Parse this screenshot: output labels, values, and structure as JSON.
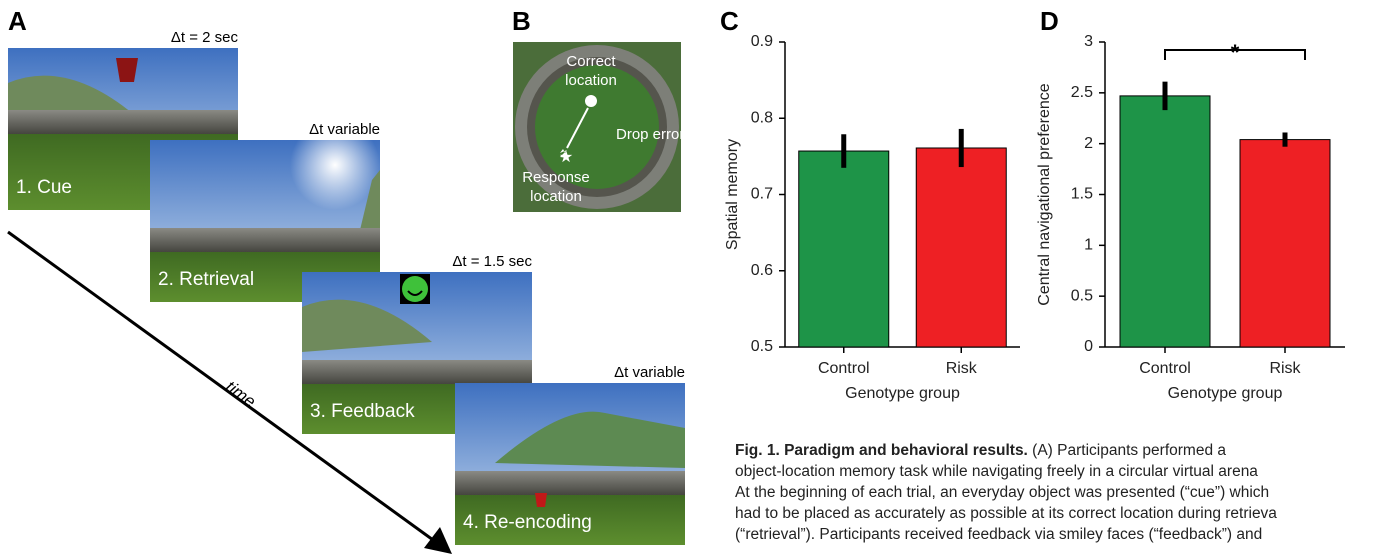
{
  "panels": {
    "a": "A",
    "b": "B",
    "c": "C",
    "d": "D"
  },
  "panel_a": {
    "scenes": [
      {
        "label": "1. Cue",
        "duration": "Δt = 2 sec"
      },
      {
        "label": "2. Retrieval",
        "duration": "Δt variable"
      },
      {
        "label": "3. Feedback",
        "duration": "Δt = 1.5 sec"
      },
      {
        "label": "4. Re-encoding",
        "duration": "Δt variable"
      }
    ],
    "time_label": "time"
  },
  "panel_b": {
    "correct": [
      "Correct",
      "location"
    ],
    "error": "Drop error",
    "response": [
      "Response",
      "location"
    ]
  },
  "chart_data": [
    {
      "type": "bar",
      "categories": [
        "Control",
        "Risk"
      ],
      "values": [
        0.757,
        0.761
      ],
      "errors": [
        0.022,
        0.025
      ],
      "colors": [
        "#1e9448",
        "#ee2024"
      ],
      "ylim": [
        0.5,
        0.9
      ],
      "yticks": [
        0.5,
        0.6,
        0.7,
        0.8,
        0.9
      ],
      "y_label": "Spatial memory",
      "x_label": "Genotype group"
    },
    {
      "type": "bar",
      "categories": [
        "Control",
        "Risk"
      ],
      "values": [
        2.47,
        2.04
      ],
      "errors": [
        0.14,
        0.07
      ],
      "colors": [
        "#1e9448",
        "#ee2024"
      ],
      "ylim": [
        0,
        3
      ],
      "yticks": [
        0,
        0.5,
        1,
        1.5,
        2,
        2.5,
        3
      ],
      "y_label": "Central navigational preference",
      "x_label": "Genotype group",
      "annotation": "*"
    }
  ],
  "caption": {
    "title": "Fig. 1. Paradigm and behavioral results.",
    "lines": [
      " (A) Participants performed a",
      "object-location memory task while navigating freely in a circular virtual arena",
      "At the beginning of each trial, an everyday object was presented (“cue”) which",
      "had to be placed as accurately as possible at its correct location during retrieva",
      "(“retrieval”). Participants received feedback via smiley faces (“feedback”) and"
    ]
  }
}
